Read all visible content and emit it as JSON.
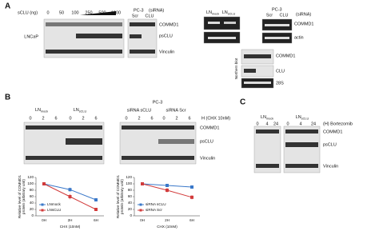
{
  "panel_a": {
    "letter": "A",
    "dose_label": "sCLU (ng)",
    "doses": [
      "0",
      "50",
      "100",
      "250",
      "500",
      "1000"
    ],
    "cell_line": "LNCaP",
    "pc3": "PC-3",
    "sirna": "(siRNA)",
    "lanes": [
      "Scr",
      "CLU"
    ],
    "bands": [
      "COMMD1",
      "psCLU",
      "Vinculin"
    ],
    "right": {
      "lanes": [
        {
          "base": "LN",
          "sub": "mock"
        },
        {
          "base": "LN",
          "sub": "sCLU"
        }
      ],
      "pc3": "PC-3",
      "sirna": "(siRNA)",
      "pc3_lanes": [
        "Scr",
        "CLU"
      ],
      "bands": [
        "COMMD1",
        "actin"
      ],
      "northern_bands": [
        "COMMD1",
        "CLU",
        "28S"
      ],
      "northern": "Northern blot"
    }
  },
  "panel_b": {
    "letter": "B",
    "groups": [
      {
        "base": "LN",
        "sub": "mock"
      },
      {
        "base": "LN",
        "sub": "sCLU"
      }
    ],
    "pc3": "PC-3",
    "pc3_groups": [
      "siRNA sCLU",
      "siRNA Scr"
    ],
    "times": [
      "0",
      "2",
      "6"
    ],
    "time_label": "H (CHX 10nM)",
    "bands": [
      "COMMD1",
      "psCLU",
      "Vinculin"
    ]
  },
  "panel_c": {
    "letter": "C",
    "groups": [
      {
        "base": "LN",
        "sub": "mock"
      },
      {
        "base": "LN",
        "sub": "sCLU"
      }
    ],
    "times": [
      "0",
      "4",
      "24"
    ],
    "time_label": "(H) Bortezomib",
    "bands": [
      "COMMD1",
      "psCLU",
      "Vinculin"
    ]
  },
  "chart_data": [
    {
      "type": "line",
      "y_label": [
        "Relative level of COMMD1",
        "protein (arbitrary unit)"
      ],
      "x_label": "CHX (10nM)",
      "categories": [
        "0H",
        "2H",
        "6H"
      ],
      "ylim": [
        0,
        120
      ],
      "yticks": [
        0,
        20,
        40,
        60,
        80,
        100,
        120
      ],
      "series": [
        {
          "name": "LNmock",
          "color": "#3a78c9",
          "values": [
            100,
            82,
            50
          ],
          "errors": [
            0,
            6,
            5
          ]
        },
        {
          "name": "LNsCLU",
          "color": "#d23b3b",
          "values": [
            100,
            60,
            20
          ],
          "errors": [
            0,
            8,
            4
          ]
        }
      ]
    },
    {
      "type": "line",
      "y_label": [
        "Relative level of COMMD1",
        "protein (arbitrary unit)"
      ],
      "x_label": "CHX (10nM)",
      "categories": [
        "0H",
        "2H",
        "6H"
      ],
      "ylim": [
        0,
        120
      ],
      "yticks": [
        0,
        20,
        40,
        60,
        80,
        100,
        120
      ],
      "series": [
        {
          "name": "siRNA sCLU",
          "color": "#3a78c9",
          "values": [
            100,
            95,
            90
          ],
          "errors": [
            0,
            4,
            4
          ]
        },
        {
          "name": "siRNA Scr",
          "color": "#d23b3b",
          "values": [
            100,
            80,
            58
          ],
          "errors": [
            0,
            7,
            6
          ]
        }
      ]
    }
  ]
}
